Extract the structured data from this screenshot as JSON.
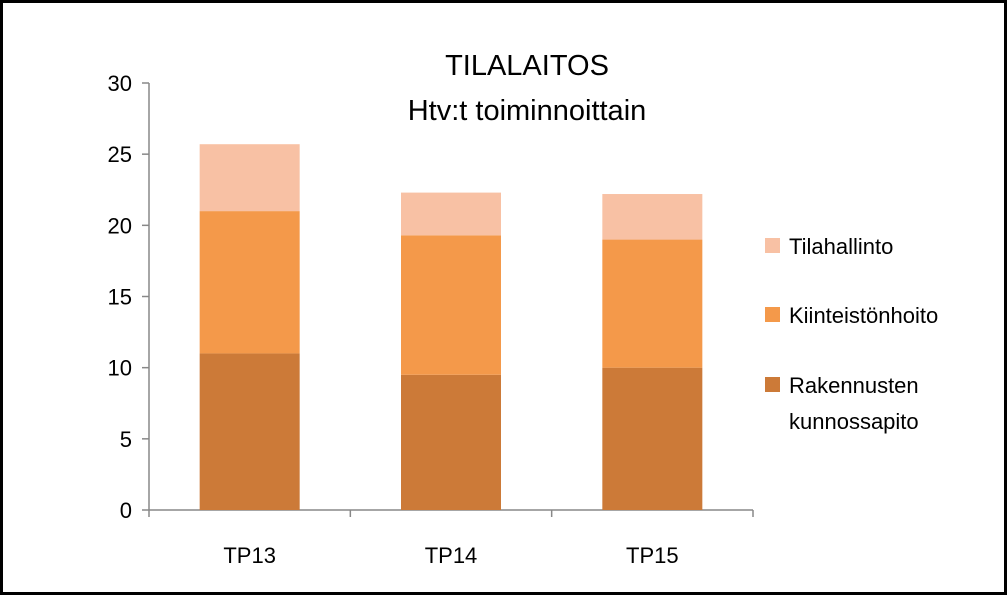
{
  "chart_data": {
    "type": "bar",
    "stacked": true,
    "title": "TILALAITOS",
    "subtitle": "Htv:t toiminnoittain",
    "categories": [
      "TP13",
      "TP14",
      "TP15"
    ],
    "series": [
      {
        "name": "Rakennusten kunnossapito",
        "name_lines": [
          "Rakennusten",
          "kunnossapito"
        ],
        "values": [
          11,
          9.5,
          10
        ],
        "color": "#CC7A38"
      },
      {
        "name": "Kiinteistönhoito",
        "name_lines": [
          "Kiinteistönhoito"
        ],
        "values": [
          10,
          9.8,
          9
        ],
        "color": "#F4994A"
      },
      {
        "name": "Tilahallinto",
        "name_lines": [
          "Tilahallinto"
        ],
        "values": [
          4.7,
          3,
          3.2
        ],
        "color": "#F8C1A4"
      }
    ],
    "yticks": [
      "0",
      "5",
      "10",
      "15",
      "20",
      "25",
      "30"
    ],
    "ylim": [
      0,
      30
    ],
    "grid": false,
    "legend_position": "right"
  }
}
